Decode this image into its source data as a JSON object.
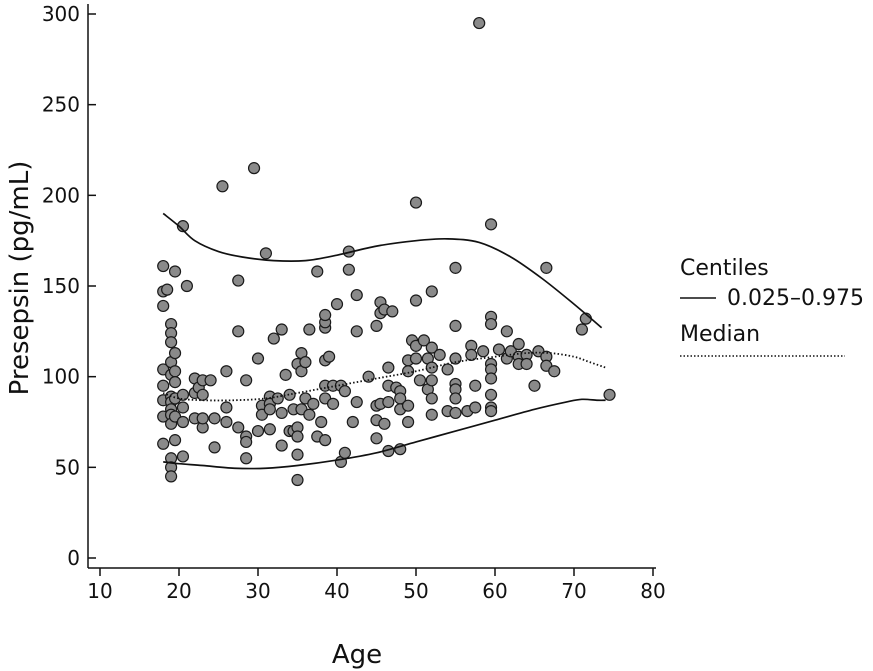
{
  "chart_data": {
    "type": "scatter",
    "xlabel": "Age",
    "ylabel": "Presepsin (pg/mL)",
    "xlim": [
      10,
      80
    ],
    "ylim": [
      0,
      300
    ],
    "xticks": [
      "10",
      "20",
      "30",
      "40",
      "50",
      "60",
      "70",
      "80"
    ],
    "yticks": [
      "0",
      "50",
      "100",
      "150",
      "200",
      "250",
      "300"
    ],
    "grid": false,
    "legend": {
      "placement": "right",
      "title": "Centiles",
      "entries": [
        {
          "label": "0.025–0.975",
          "style": "solid"
        },
        {
          "label": "Median",
          "style": "dotted"
        }
      ]
    },
    "point_color": "#8a8a8a",
    "line_color": "#111111",
    "series": [
      {
        "kind": "points",
        "points": [
          [
            18,
            161
          ],
          [
            18,
            147
          ],
          [
            18,
            139
          ],
          [
            18.5,
            148
          ],
          [
            18,
            104
          ],
          [
            18,
            95
          ],
          [
            18,
            87
          ],
          [
            18,
            78
          ],
          [
            18,
            63
          ],
          [
            19,
            129
          ],
          [
            19,
            124
          ],
          [
            19,
            119
          ],
          [
            19,
            108
          ],
          [
            19,
            101
          ],
          [
            19,
            89
          ],
          [
            19,
            86
          ],
          [
            19,
            82
          ],
          [
            19,
            79
          ],
          [
            19,
            74
          ],
          [
            19,
            55
          ],
          [
            19,
            50
          ],
          [
            19,
            45
          ],
          [
            19.5,
            158
          ],
          [
            19.5,
            113
          ],
          [
            19.5,
            103
          ],
          [
            19.5,
            97
          ],
          [
            19.5,
            88
          ],
          [
            19.5,
            78
          ],
          [
            19.5,
            65
          ],
          [
            20.5,
            183
          ],
          [
            21,
            150
          ],
          [
            20.5,
            90
          ],
          [
            20.5,
            83
          ],
          [
            20.5,
            75
          ],
          [
            20.5,
            56
          ],
          [
            22,
            99
          ],
          [
            22,
            91
          ],
          [
            22,
            77
          ],
          [
            22.5,
            94
          ],
          [
            23,
            98
          ],
          [
            23,
            90
          ],
          [
            23,
            72
          ],
          [
            23,
            77
          ],
          [
            24,
            98
          ],
          [
            24.5,
            77
          ],
          [
            24.5,
            61
          ],
          [
            25.5,
            205
          ],
          [
            26,
            103
          ],
          [
            26,
            83
          ],
          [
            26,
            75
          ],
          [
            27.5,
            72
          ],
          [
            27.5,
            125
          ],
          [
            27.5,
            153
          ],
          [
            28.5,
            98
          ],
          [
            28.5,
            67
          ],
          [
            28.5,
            64
          ],
          [
            28.5,
            55
          ],
          [
            29.5,
            215
          ],
          [
            30,
            110
          ],
          [
            30,
            70
          ],
          [
            30.5,
            84
          ],
          [
            30.5,
            79
          ],
          [
            31,
            168
          ],
          [
            31.5,
            89
          ],
          [
            31.5,
            85
          ],
          [
            31.5,
            82
          ],
          [
            31.5,
            71
          ],
          [
            32,
            121
          ],
          [
            32.5,
            88
          ],
          [
            33,
            126
          ],
          [
            33,
            80
          ],
          [
            33,
            62
          ],
          [
            33.5,
            101
          ],
          [
            34,
            90
          ],
          [
            34,
            70
          ],
          [
            34.5,
            82
          ],
          [
            34.5,
            70
          ],
          [
            35,
            107
          ],
          [
            35,
            72
          ],
          [
            35,
            67
          ],
          [
            35,
            57
          ],
          [
            35,
            43
          ],
          [
            35.5,
            113
          ],
          [
            35.5,
            103
          ],
          [
            35.5,
            82
          ],
          [
            36,
            108
          ],
          [
            36,
            88
          ],
          [
            36.5,
            126
          ],
          [
            36.5,
            79
          ],
          [
            37,
            85
          ],
          [
            37.5,
            158
          ],
          [
            37.5,
            67
          ],
          [
            38,
            75
          ],
          [
            38.5,
            127
          ],
          [
            38.5,
            130
          ],
          [
            38.5,
            134
          ],
          [
            38.5,
            109
          ],
          [
            38.5,
            95
          ],
          [
            38.5,
            88
          ],
          [
            38.5,
            65
          ],
          [
            39,
            111
          ],
          [
            39.5,
            95
          ],
          [
            39.5,
            85
          ],
          [
            40,
            140
          ],
          [
            40.5,
            95
          ],
          [
            40.5,
            53
          ],
          [
            41,
            92
          ],
          [
            41,
            58
          ],
          [
            41.5,
            169
          ],
          [
            41.5,
            159
          ],
          [
            42,
            75
          ],
          [
            42.5,
            125
          ],
          [
            42.5,
            145
          ],
          [
            42.5,
            86
          ],
          [
            44,
            100
          ],
          [
            45,
            128
          ],
          [
            45,
            84
          ],
          [
            45,
            76
          ],
          [
            45,
            66
          ],
          [
            45.5,
            141
          ],
          [
            45.5,
            135
          ],
          [
            45.5,
            85
          ],
          [
            46,
            137
          ],
          [
            46,
            74
          ],
          [
            46.5,
            105
          ],
          [
            46.5,
            95
          ],
          [
            46.5,
            86
          ],
          [
            46.5,
            59
          ],
          [
            47,
            136
          ],
          [
            47.5,
            94
          ],
          [
            48,
            92
          ],
          [
            48,
            88
          ],
          [
            48,
            82
          ],
          [
            48,
            60
          ],
          [
            49,
            109
          ],
          [
            49,
            103
          ],
          [
            49,
            84
          ],
          [
            49,
            75
          ],
          [
            49.5,
            120
          ],
          [
            50,
            142
          ],
          [
            50,
            196
          ],
          [
            50,
            117
          ],
          [
            50,
            110
          ],
          [
            50.5,
            98
          ],
          [
            51,
            120
          ],
          [
            51.5,
            110
          ],
          [
            51.5,
            93
          ],
          [
            52,
            147
          ],
          [
            52,
            116
          ],
          [
            52,
            105
          ],
          [
            52,
            98
          ],
          [
            52,
            88
          ],
          [
            52,
            79
          ],
          [
            53,
            112
          ],
          [
            54,
            104
          ],
          [
            54,
            81
          ],
          [
            55,
            160
          ],
          [
            55,
            128
          ],
          [
            55,
            110
          ],
          [
            55,
            96
          ],
          [
            55,
            93
          ],
          [
            55,
            88
          ],
          [
            55,
            80
          ],
          [
            56.5,
            81
          ],
          [
            57,
            117
          ],
          [
            57,
            112
          ],
          [
            57.5,
            95
          ],
          [
            57.5,
            83
          ],
          [
            58,
            295
          ],
          [
            58.5,
            114
          ],
          [
            59.5,
            184
          ],
          [
            59.5,
            133
          ],
          [
            59.5,
            129
          ],
          [
            59.5,
            107
          ],
          [
            59.5,
            104
          ],
          [
            59.5,
            99
          ],
          [
            59.5,
            90
          ],
          [
            59.5,
            83
          ],
          [
            59.5,
            81
          ],
          [
            60.5,
            115
          ],
          [
            61.5,
            125
          ],
          [
            61.5,
            110
          ],
          [
            62,
            114
          ],
          [
            63,
            118
          ],
          [
            63,
            111
          ],
          [
            63,
            107
          ],
          [
            64,
            112
          ],
          [
            64,
            107
          ],
          [
            65,
            95
          ],
          [
            65.5,
            114
          ],
          [
            66.5,
            160
          ],
          [
            66.5,
            111
          ],
          [
            66.5,
            106
          ],
          [
            67.5,
            103
          ],
          [
            71,
            126
          ],
          [
            71.5,
            132
          ],
          [
            74.5,
            90
          ]
        ]
      },
      {
        "kind": "line",
        "name": "0.975",
        "style": "solid",
        "points": [
          [
            18,
            190
          ],
          [
            20,
            183
          ],
          [
            22,
            175
          ],
          [
            25,
            169
          ],
          [
            28,
            166
          ],
          [
            32,
            164
          ],
          [
            36,
            164
          ],
          [
            40,
            167
          ],
          [
            45,
            172
          ],
          [
            50,
            175
          ],
          [
            54,
            176
          ],
          [
            58,
            174
          ],
          [
            62,
            166
          ],
          [
            66,
            154
          ],
          [
            70,
            140
          ],
          [
            73.5,
            127
          ]
        ]
      },
      {
        "kind": "line",
        "name": "Median",
        "style": "dotted",
        "points": [
          [
            18,
            91
          ],
          [
            20,
            88
          ],
          [
            23,
            87
          ],
          [
            27,
            87
          ],
          [
            31,
            88
          ],
          [
            35,
            91
          ],
          [
            40,
            95
          ],
          [
            45,
            99
          ],
          [
            50,
            103
          ],
          [
            55,
            108
          ],
          [
            60,
            111
          ],
          [
            64,
            113
          ],
          [
            67,
            113
          ],
          [
            70,
            111
          ],
          [
            72,
            108
          ],
          [
            74,
            105
          ]
        ]
      },
      {
        "kind": "line",
        "name": "0.025",
        "style": "solid",
        "points": [
          [
            18,
            53
          ],
          [
            20,
            52
          ],
          [
            23,
            51
          ],
          [
            27,
            49.5
          ],
          [
            31,
            49.5
          ],
          [
            35,
            51
          ],
          [
            40,
            54
          ],
          [
            45,
            58
          ],
          [
            50,
            64
          ],
          [
            55,
            70
          ],
          [
            60,
            76
          ],
          [
            65,
            82
          ],
          [
            69,
            86
          ],
          [
            71,
            87.5
          ],
          [
            73,
            87
          ],
          [
            74,
            87
          ]
        ]
      }
    ]
  }
}
